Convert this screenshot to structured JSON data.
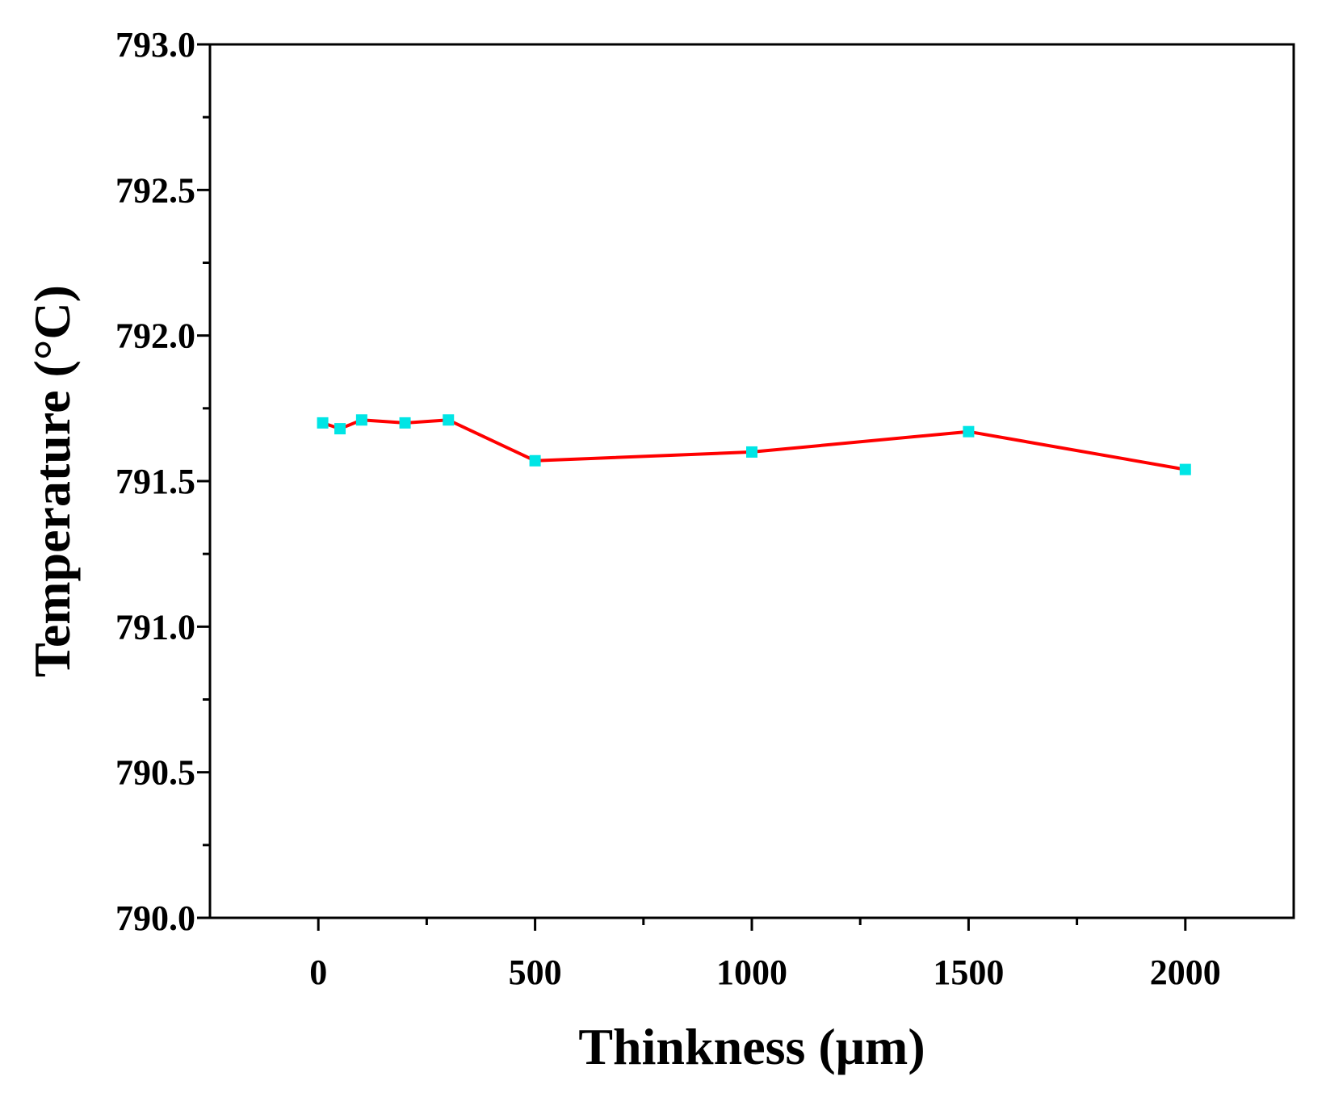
{
  "chart_data": {
    "type": "line",
    "title": "",
    "xlabel": "Thinkness (μm)",
    "ylabel": "Temperature (°C)",
    "xlim": [
      -250,
      2250
    ],
    "ylim": [
      790.0,
      793.0
    ],
    "x_ticks": [
      0,
      500,
      1000,
      1500,
      2000
    ],
    "x_tick_labels": [
      "0",
      "500",
      "1000",
      "1500",
      "2000"
    ],
    "y_ticks": [
      790.0,
      790.5,
      791.0,
      791.5,
      792.0,
      792.5,
      793.0
    ],
    "y_tick_labels": [
      "790.0",
      "790.5",
      "791.0",
      "791.5",
      "792.0",
      "792.5",
      "793.0"
    ],
    "grid": false,
    "legend": "none",
    "series": [
      {
        "x": [
          10,
          50,
          100,
          200,
          300,
          500,
          1000,
          1500,
          2000
        ],
        "y": [
          791.7,
          791.68,
          791.71,
          791.7,
          791.71,
          791.57,
          791.6,
          791.67,
          791.54
        ],
        "line_color": "#ff0000",
        "marker_color": "#00e5e5",
        "marker": "square"
      }
    ]
  }
}
